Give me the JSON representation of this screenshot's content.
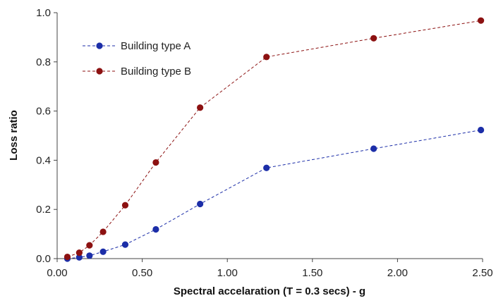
{
  "chart_data": {
    "type": "line",
    "title": "",
    "xlabel": "Spectral accelaration (T = 0.3 secs) - g",
    "ylabel": "Loss ratio",
    "xlim": [
      0,
      2.5
    ],
    "ylim": [
      0,
      1.0
    ],
    "x_ticks": [
      "0.00",
      "0.50",
      "1.00",
      "1.50",
      "2.00",
      "2.50"
    ],
    "y_ticks": [
      "0.0",
      "0.2",
      "0.4",
      "0.6",
      "0.8",
      "1.0"
    ],
    "grid": false,
    "legend_position": "top-left",
    "line_style": "dashed",
    "series": [
      {
        "name": "Building type A",
        "color": "#1c2ea8",
        "x": [
          0.06,
          0.13,
          0.19,
          0.27,
          0.4,
          0.58,
          0.84,
          1.23,
          1.86,
          2.49
        ],
        "y": [
          0.0,
          0.005,
          0.012,
          0.028,
          0.057,
          0.119,
          0.222,
          0.369,
          0.447,
          0.523
        ]
      },
      {
        "name": "Building type B",
        "color": "#8c1111",
        "x": [
          0.06,
          0.13,
          0.19,
          0.27,
          0.4,
          0.58,
          0.84,
          1.23,
          1.86,
          2.49
        ],
        "y": [
          0.007,
          0.024,
          0.054,
          0.109,
          0.217,
          0.391,
          0.614,
          0.82,
          0.896,
          0.968
        ]
      }
    ]
  }
}
